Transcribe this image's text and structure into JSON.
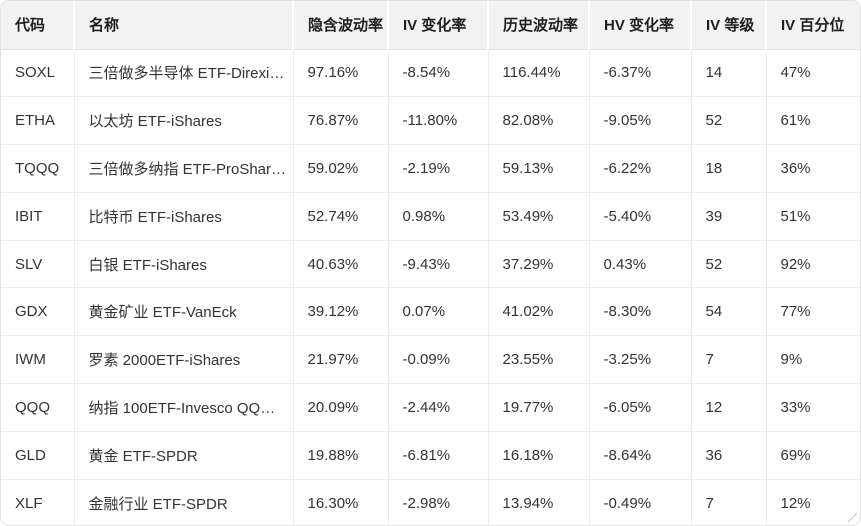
{
  "table": {
    "columns": [
      {
        "key": "code",
        "label": "代码"
      },
      {
        "key": "name",
        "label": "名称"
      },
      {
        "key": "iv",
        "label": "隐含波动率"
      },
      {
        "key": "iv_change",
        "label": "IV 变化率"
      },
      {
        "key": "hv",
        "label": "历史波动率"
      },
      {
        "key": "hv_change",
        "label": "HV 变化率"
      },
      {
        "key": "iv_rank",
        "label": "IV 等级"
      },
      {
        "key": "iv_percentile",
        "label": "IV 百分位"
      }
    ],
    "rows": [
      [
        "SOXL",
        "三倍做多半导体 ETF-Direxi…",
        "97.16%",
        "-8.54%",
        "116.44%",
        "-6.37%",
        "14",
        "47%"
      ],
      [
        "ETHA",
        "以太坊 ETF-iShares",
        "76.87%",
        "-11.80%",
        "82.08%",
        "-9.05%",
        "52",
        "61%"
      ],
      [
        "TQQQ",
        "三倍做多纳指 ETF-ProShar…",
        "59.02%",
        "-2.19%",
        "59.13%",
        "-6.22%",
        "18",
        "36%"
      ],
      [
        "IBIT",
        "比特币 ETF-iShares",
        "52.74%",
        "0.98%",
        "53.49%",
        "-5.40%",
        "39",
        "51%"
      ],
      [
        "SLV",
        "白银 ETF-iShares",
        "40.63%",
        "-9.43%",
        "37.29%",
        "0.43%",
        "52",
        "92%"
      ],
      [
        "GDX",
        "黄金矿业 ETF-VanEck",
        "39.12%",
        "0.07%",
        "41.02%",
        "-8.30%",
        "54",
        "77%"
      ],
      [
        "IWM",
        "罗素 2000ETF-iShares",
        "21.97%",
        "-0.09%",
        "23.55%",
        "-3.25%",
        "7",
        "9%"
      ],
      [
        "QQQ",
        "纳指 100ETF-Invesco QQQ…",
        "20.09%",
        "-2.44%",
        "19.77%",
        "-6.05%",
        "12",
        "33%"
      ],
      [
        "GLD",
        "黄金 ETF-SPDR",
        "19.88%",
        "-6.81%",
        "16.18%",
        "-8.64%",
        "36",
        "69%"
      ],
      [
        "XLF",
        "金融行业 ETF-SPDR",
        "16.30%",
        "-2.98%",
        "13.94%",
        "-0.49%",
        "7",
        "12%"
      ]
    ]
  },
  "colors": {
    "header_bg": "#f2f2f2",
    "header_text": "#1f1f1f",
    "cell_text": "#333333",
    "divider": "#ececec",
    "header_divider": "#ffffff",
    "outer_border": "#e2e2e2",
    "grip": "#c8c8c8",
    "row_bg": "#ffffff"
  }
}
